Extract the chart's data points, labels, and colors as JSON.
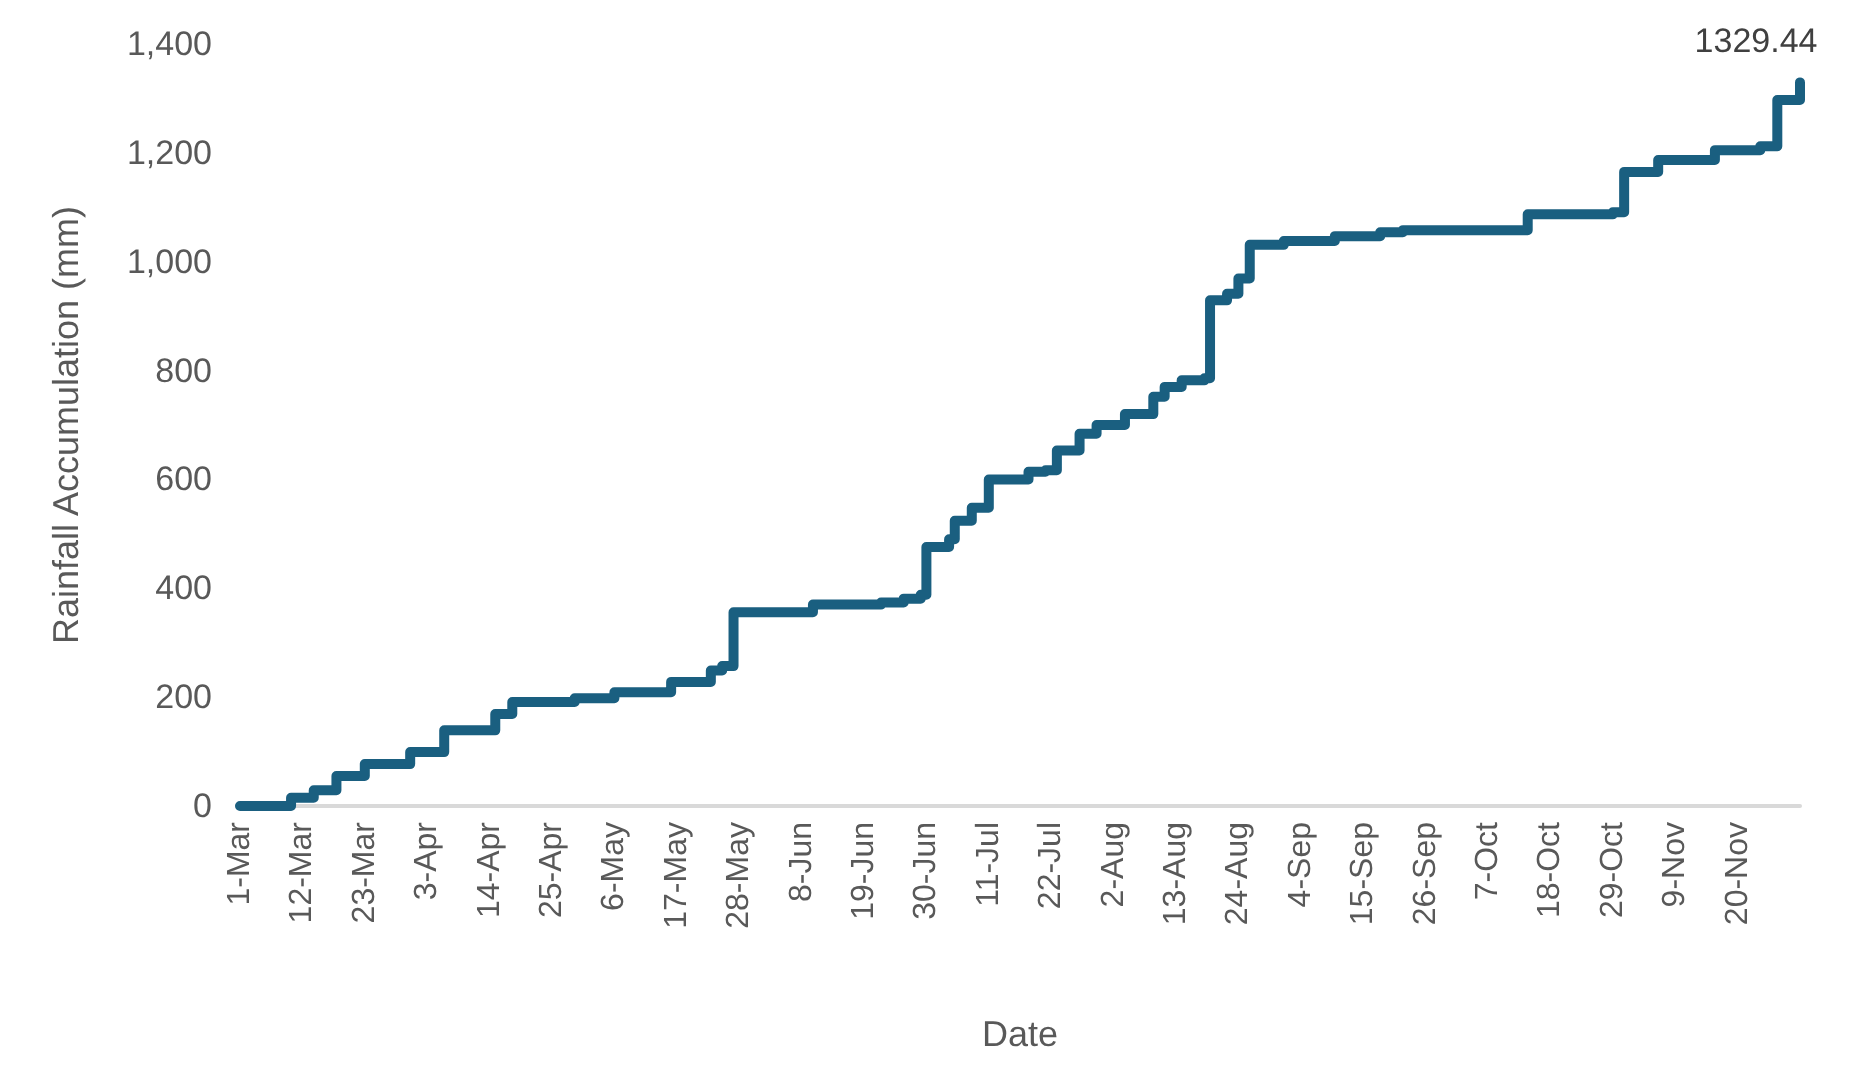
{
  "chart_data": {
    "type": "step",
    "xlabel": "Date",
    "ylabel": "Rainfall Accumulation (mm)",
    "x": [
      "--03-01",
      "--03-10",
      "--03-14",
      "--03-18",
      "--03-23",
      "--03-31",
      "--04-06",
      "--04-15",
      "--04-18",
      "--04-29",
      "--05-06",
      "--05-16",
      "--05-23",
      "--05-25",
      "--05-27",
      "--06-10",
      "--06-22",
      "--06-26",
      "--06-29",
      "--06-30",
      "--07-04",
      "--07-05",
      "--07-08",
      "--07-11",
      "--07-18",
      "--07-21",
      "--07-23",
      "--07-27",
      "--07-30",
      "--08-04",
      "--08-09",
      "--08-11",
      "--08-14",
      "--08-18",
      "--08-19",
      "--08-22",
      "--08-24",
      "--08-26",
      "--09-01",
      "--09-10",
      "--09-18",
      "--09-22",
      "--10-14",
      "--10-29",
      "--10-31",
      "--11-06",
      "--11-16",
      "--11-24",
      "--11-27",
      "--12-01"
    ],
    "series": [
      {
        "color": "#1a5f80",
        "values": [
          0,
          15,
          29,
          55,
          77,
          99,
          139,
          169,
          191,
          198,
          209,
          228,
          249,
          257,
          356,
          370,
          374,
          381,
          388,
          476,
          490,
          524,
          548,
          600,
          614,
          617,
          653,
          684,
          700,
          720,
          752,
          770,
          782,
          786,
          929,
          941,
          969,
          1031,
          1038,
          1047,
          1054,
          1058,
          1087,
          1091,
          1165,
          1187,
          1205,
          1212,
          1297,
          1329.44
        ],
        "value_labels": [
          null,
          null,
          null,
          null,
          null,
          null,
          null,
          null,
          null,
          null,
          null,
          null,
          null,
          null,
          null,
          null,
          null,
          null,
          null,
          null,
          null,
          null,
          null,
          null,
          null,
          null,
          null,
          null,
          null,
          null,
          null,
          null,
          null,
          null,
          null,
          null,
          null,
          null,
          null,
          null,
          null,
          null,
          null,
          null,
          null,
          null,
          null,
          null,
          null,
          "1329.44"
        ]
      }
    ],
    "xlim": [
      "--03-01",
      "--12-01"
    ],
    "xticks": [
      {
        "value": "--03-01",
        "label": "1-Mar"
      },
      {
        "value": "--03-12",
        "label": "12-Mar"
      },
      {
        "value": "--03-23",
        "label": "23-Mar"
      },
      {
        "value": "--04-03",
        "label": "3-Apr"
      },
      {
        "value": "--04-14",
        "label": "14-Apr"
      },
      {
        "value": "--04-25",
        "label": "25-Apr"
      },
      {
        "value": "--05-06",
        "label": "6-May"
      },
      {
        "value": "--05-17",
        "label": "17-May"
      },
      {
        "value": "--05-28",
        "label": "28-May"
      },
      {
        "value": "--06-08",
        "label": "8-Jun"
      },
      {
        "value": "--06-19",
        "label": "19-Jun"
      },
      {
        "value": "--06-30",
        "label": "30-Jun"
      },
      {
        "value": "--07-11",
        "label": "11-Jul"
      },
      {
        "value": "--07-22",
        "label": "22-Jul"
      },
      {
        "value": "--08-02",
        "label": "2-Aug"
      },
      {
        "value": "--08-13",
        "label": "13-Aug"
      },
      {
        "value": "--08-24",
        "label": "24-Aug"
      },
      {
        "value": "--09-04",
        "label": "4-Sep"
      },
      {
        "value": "--09-15",
        "label": "15-Sep"
      },
      {
        "value": "--09-26",
        "label": "26-Sep"
      },
      {
        "value": "--10-07",
        "label": "7-Oct"
      },
      {
        "value": "--10-18",
        "label": "18-Oct"
      },
      {
        "value": "--10-29",
        "label": "29-Oct"
      },
      {
        "value": "--11-09",
        "label": "9-Nov"
      },
      {
        "value": "--11-20",
        "label": "20-Nov"
      }
    ],
    "ylim": [
      0,
      1400
    ],
    "yticks": [
      0,
      200,
      400,
      600,
      800,
      {
        "value": 1000,
        "label": "1,000"
      },
      {
        "value": 1200,
        "label": "1,200"
      },
      {
        "value": 1400,
        "label": "1,400"
      }
    ],
    "grid": false,
    "marker": "none",
    "line_style": "solid"
  }
}
